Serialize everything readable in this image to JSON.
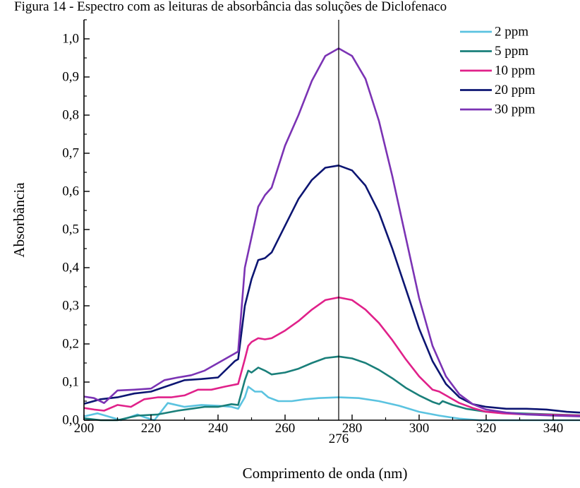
{
  "caption": "Figura 14 - Espectro com as leituras de absorbância das soluções de Diclofenaco",
  "chart_data": {
    "type": "line",
    "title": "",
    "xlabel": "Comprimento de onda (nm)",
    "ylabel": "Absorbância",
    "xlim": [
      200,
      348
    ],
    "ylim": [
      0,
      1.05
    ],
    "xticks": [
      "200",
      "220",
      "240",
      "260",
      "280",
      "300",
      "320",
      "340"
    ],
    "yticks": [
      "0,0",
      "0,1",
      "0,2",
      "0,3",
      "0,4",
      "0,5",
      "0,6",
      "0,7",
      "0,8",
      "0,9",
      "1,0"
    ],
    "marker_line": {
      "x": 276,
      "label": "276"
    },
    "legend_position": "top-right",
    "grid": false,
    "series": [
      {
        "name": "2 ppm",
        "color": "#5bc3e0",
        "points": [
          [
            200,
            0.01
          ],
          [
            204,
            0.018
          ],
          [
            208,
            0.008
          ],
          [
            211,
            0.0
          ],
          [
            216,
            0.015
          ],
          [
            218,
            0.008
          ],
          [
            221,
            0.0
          ],
          [
            225,
            0.045
          ],
          [
            230,
            0.035
          ],
          [
            235,
            0.04
          ],
          [
            240,
            0.038
          ],
          [
            244,
            0.035
          ],
          [
            246,
            0.03
          ],
          [
            248,
            0.06
          ],
          [
            249,
            0.088
          ],
          [
            251,
            0.075
          ],
          [
            253,
            0.075
          ],
          [
            255,
            0.06
          ],
          [
            258,
            0.05
          ],
          [
            262,
            0.05
          ],
          [
            266,
            0.055
          ],
          [
            270,
            0.058
          ],
          [
            276,
            0.06
          ],
          [
            282,
            0.058
          ],
          [
            288,
            0.05
          ],
          [
            294,
            0.038
          ],
          [
            300,
            0.022
          ],
          [
            306,
            0.012
          ],
          [
            312,
            0.004
          ],
          [
            318,
            0.0
          ],
          [
            330,
            0.0
          ],
          [
            348,
            0.0
          ]
        ]
      },
      {
        "name": "5 ppm",
        "color": "#1a7f7a",
        "points": [
          [
            200,
            0.005
          ],
          [
            205,
            0.0
          ],
          [
            210,
            0.0
          ],
          [
            216,
            0.012
          ],
          [
            222,
            0.015
          ],
          [
            228,
            0.025
          ],
          [
            232,
            0.03
          ],
          [
            236,
            0.035
          ],
          [
            240,
            0.035
          ],
          [
            244,
            0.042
          ],
          [
            246,
            0.04
          ],
          [
            248,
            0.105
          ],
          [
            249,
            0.13
          ],
          [
            250,
            0.125
          ],
          [
            252,
            0.138
          ],
          [
            254,
            0.13
          ],
          [
            256,
            0.12
          ],
          [
            260,
            0.125
          ],
          [
            264,
            0.135
          ],
          [
            268,
            0.15
          ],
          [
            272,
            0.163
          ],
          [
            276,
            0.167
          ],
          [
            280,
            0.162
          ],
          [
            284,
            0.15
          ],
          [
            288,
            0.132
          ],
          [
            292,
            0.11
          ],
          [
            296,
            0.085
          ],
          [
            300,
            0.065
          ],
          [
            304,
            0.048
          ],
          [
            306,
            0.042
          ],
          [
            307,
            0.05
          ],
          [
            310,
            0.04
          ],
          [
            314,
            0.03
          ],
          [
            320,
            0.022
          ],
          [
            330,
            0.018
          ],
          [
            340,
            0.015
          ],
          [
            348,
            0.013
          ]
        ]
      },
      {
        "name": "10 ppm",
        "color": "#e0218a",
        "points": [
          [
            200,
            0.032
          ],
          [
            203,
            0.028
          ],
          [
            206,
            0.025
          ],
          [
            210,
            0.04
          ],
          [
            214,
            0.035
          ],
          [
            218,
            0.055
          ],
          [
            222,
            0.06
          ],
          [
            226,
            0.06
          ],
          [
            230,
            0.065
          ],
          [
            234,
            0.08
          ],
          [
            238,
            0.08
          ],
          [
            242,
            0.088
          ],
          [
            246,
            0.095
          ],
          [
            248,
            0.16
          ],
          [
            249,
            0.195
          ],
          [
            250,
            0.205
          ],
          [
            252,
            0.215
          ],
          [
            254,
            0.212
          ],
          [
            256,
            0.215
          ],
          [
            260,
            0.235
          ],
          [
            264,
            0.26
          ],
          [
            268,
            0.29
          ],
          [
            272,
            0.315
          ],
          [
            276,
            0.322
          ],
          [
            280,
            0.315
          ],
          [
            284,
            0.29
          ],
          [
            288,
            0.255
          ],
          [
            292,
            0.21
          ],
          [
            296,
            0.16
          ],
          [
            300,
            0.115
          ],
          [
            304,
            0.08
          ],
          [
            306,
            0.075
          ],
          [
            308,
            0.065
          ],
          [
            312,
            0.045
          ],
          [
            316,
            0.032
          ],
          [
            320,
            0.022
          ],
          [
            325,
            0.018
          ],
          [
            330,
            0.016
          ],
          [
            340,
            0.014
          ],
          [
            348,
            0.012
          ]
        ]
      },
      {
        "name": "20 ppm",
        "color": "#0c1572",
        "points": [
          [
            200,
            0.043
          ],
          [
            205,
            0.055
          ],
          [
            210,
            0.06
          ],
          [
            215,
            0.07
          ],
          [
            220,
            0.075
          ],
          [
            225,
            0.09
          ],
          [
            230,
            0.105
          ],
          [
            235,
            0.108
          ],
          [
            240,
            0.112
          ],
          [
            245,
            0.155
          ],
          [
            246,
            0.16
          ],
          [
            248,
            0.3
          ],
          [
            250,
            0.37
          ],
          [
            252,
            0.42
          ],
          [
            254,
            0.425
          ],
          [
            256,
            0.44
          ],
          [
            260,
            0.51
          ],
          [
            264,
            0.58
          ],
          [
            268,
            0.63
          ],
          [
            272,
            0.662
          ],
          [
            276,
            0.668
          ],
          [
            280,
            0.655
          ],
          [
            284,
            0.615
          ],
          [
            288,
            0.545
          ],
          [
            292,
            0.45
          ],
          [
            296,
            0.345
          ],
          [
            300,
            0.24
          ],
          [
            304,
            0.155
          ],
          [
            308,
            0.095
          ],
          [
            312,
            0.06
          ],
          [
            316,
            0.042
          ],
          [
            320,
            0.035
          ],
          [
            326,
            0.03
          ],
          [
            332,
            0.03
          ],
          [
            338,
            0.028
          ],
          [
            344,
            0.022
          ],
          [
            348,
            0.02
          ]
        ]
      },
      {
        "name": "30 ppm",
        "color": "#7b33b4",
        "points": [
          [
            200,
            0.062
          ],
          [
            203,
            0.058
          ],
          [
            206,
            0.045
          ],
          [
            210,
            0.078
          ],
          [
            215,
            0.08
          ],
          [
            220,
            0.083
          ],
          [
            224,
            0.105
          ],
          [
            228,
            0.112
          ],
          [
            232,
            0.118
          ],
          [
            236,
            0.13
          ],
          [
            240,
            0.15
          ],
          [
            245,
            0.175
          ],
          [
            246,
            0.18
          ],
          [
            248,
            0.4
          ],
          [
            250,
            0.48
          ],
          [
            252,
            0.56
          ],
          [
            254,
            0.59
          ],
          [
            256,
            0.61
          ],
          [
            260,
            0.72
          ],
          [
            264,
            0.8
          ],
          [
            268,
            0.89
          ],
          [
            272,
            0.955
          ],
          [
            276,
            0.975
          ],
          [
            280,
            0.955
          ],
          [
            284,
            0.895
          ],
          [
            288,
            0.785
          ],
          [
            292,
            0.64
          ],
          [
            296,
            0.48
          ],
          [
            300,
            0.32
          ],
          [
            304,
            0.195
          ],
          [
            308,
            0.115
          ],
          [
            312,
            0.068
          ],
          [
            316,
            0.042
          ],
          [
            320,
            0.028
          ],
          [
            326,
            0.02
          ],
          [
            332,
            0.015
          ],
          [
            340,
            0.012
          ],
          [
            348,
            0.01
          ]
        ]
      }
    ]
  }
}
